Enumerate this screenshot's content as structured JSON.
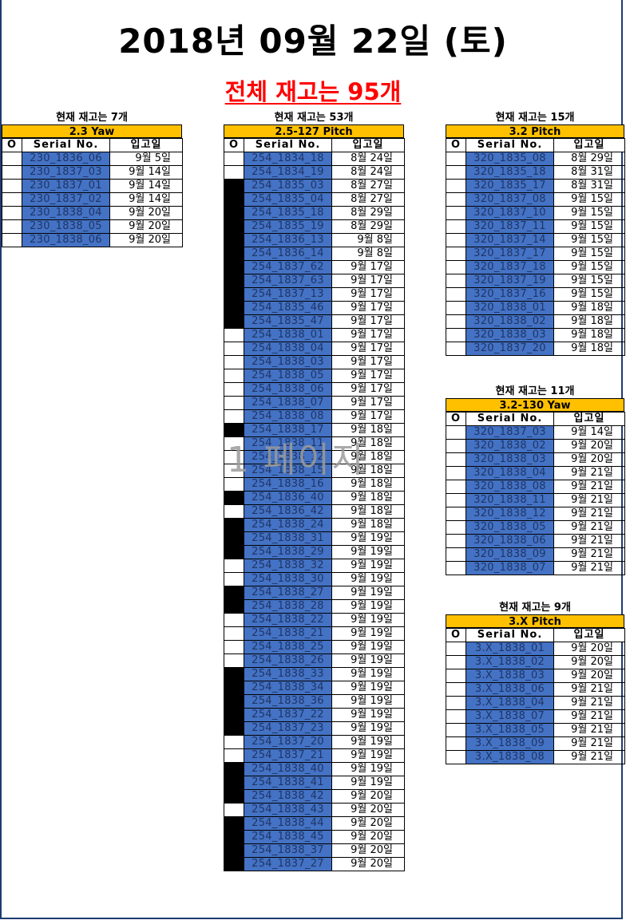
{
  "title": "2018년 09월 22일 (토)",
  "total": "전체 재고는 95개",
  "watermark": "1 페이지",
  "header": {
    "o": "O",
    "serial": "Serial No.",
    "date": "입고일"
  },
  "blocks": [
    {
      "stock": "현재 재고는 7개",
      "model": "2.3 Yaw",
      "rows": [
        {
          "o": false,
          "serial": "230_1836_06",
          "date": "9월 5일"
        },
        {
          "o": false,
          "serial": "230_1837_03",
          "date": "9월 14일"
        },
        {
          "o": false,
          "serial": "230_1837_01",
          "date": "9월 14일"
        },
        {
          "o": false,
          "serial": "230_1837_02",
          "date": "9월 14일"
        },
        {
          "o": false,
          "serial": "230_1838_04",
          "date": "9월 20일"
        },
        {
          "o": false,
          "serial": "230_1838_05",
          "date": "9월 20일"
        },
        {
          "o": false,
          "serial": "230_1838_06",
          "date": "9월 20일"
        }
      ]
    },
    {
      "stock": "현재 재고는 53개",
      "model": "2.5-127 Pitch",
      "rows": [
        {
          "o": false,
          "serial": "254_1834_18",
          "date": "8월 24일"
        },
        {
          "o": false,
          "serial": "254_1834_19",
          "date": "8월 24일"
        },
        {
          "o": true,
          "serial": "254_1835_03",
          "date": "8월 27일"
        },
        {
          "o": true,
          "serial": "254_1835_04",
          "date": "8월 27일"
        },
        {
          "o": true,
          "serial": "254_1835_18",
          "date": "8월 29일"
        },
        {
          "o": true,
          "serial": "254_1835_19",
          "date": "8월 29일"
        },
        {
          "o": true,
          "serial": "254_1836_13",
          "date": "9월 8일"
        },
        {
          "o": true,
          "serial": "254_1836_14",
          "date": "9월 8일"
        },
        {
          "o": true,
          "serial": "254_1837_62",
          "date": "9월 17일"
        },
        {
          "o": true,
          "serial": "254_1837_63",
          "date": "9월 17일"
        },
        {
          "o": true,
          "serial": "254_1837_13",
          "date": "9월 17일"
        },
        {
          "o": true,
          "serial": "254_1835_46",
          "date": "9월 17일"
        },
        {
          "o": true,
          "serial": "254_1835_47",
          "date": "9월 17일"
        },
        {
          "o": false,
          "serial": "254_1838_01",
          "date": "9월 17일"
        },
        {
          "o": false,
          "serial": "254_1838_04",
          "date": "9월 17일"
        },
        {
          "o": false,
          "serial": "254_1838_03",
          "date": "9월 17일"
        },
        {
          "o": false,
          "serial": "254_1838_05",
          "date": "9월 17일"
        },
        {
          "o": false,
          "serial": "254_1838_06",
          "date": "9월 17일"
        },
        {
          "o": false,
          "serial": "254_1838_07",
          "date": "9월 17일"
        },
        {
          "o": false,
          "serial": "254_1838_08",
          "date": "9월 17일"
        },
        {
          "o": true,
          "serial": "254_1838_17",
          "date": "9월 18일"
        },
        {
          "o": false,
          "serial": "254_1838_11",
          "date": "9월 18일"
        },
        {
          "o": false,
          "serial": "254_1838_12",
          "date": "9월 18일"
        },
        {
          "o": false,
          "serial": "254_1838_15",
          "date": "9월 18일"
        },
        {
          "o": false,
          "serial": "254_1838_16",
          "date": "9월 18일"
        },
        {
          "o": true,
          "serial": "254_1836_40",
          "date": "9월 18일"
        },
        {
          "o": false,
          "serial": "254_1836_42",
          "date": "9월 18일"
        },
        {
          "o": true,
          "serial": "254_1838_24",
          "date": "9월 18일"
        },
        {
          "o": true,
          "serial": "254_1838_31",
          "date": "9월 19일"
        },
        {
          "o": true,
          "serial": "254_1838_29",
          "date": "9월 19일"
        },
        {
          "o": false,
          "serial": "254_1838_32",
          "date": "9월 19일"
        },
        {
          "o": false,
          "serial": "254_1838_30",
          "date": "9월 19일"
        },
        {
          "o": true,
          "serial": "254_1838_27",
          "date": "9월 19일"
        },
        {
          "o": true,
          "serial": "254_1838_28",
          "date": "9월 19일"
        },
        {
          "o": false,
          "serial": "254_1838_22",
          "date": "9월 19일"
        },
        {
          "o": false,
          "serial": "254_1838_21",
          "date": "9월 19일"
        },
        {
          "o": false,
          "serial": "254_1838_25",
          "date": "9월 19일"
        },
        {
          "o": false,
          "serial": "254_1838_26",
          "date": "9월 19일"
        },
        {
          "o": true,
          "serial": "254_1838_33",
          "date": "9월 19일"
        },
        {
          "o": true,
          "serial": "254_1838_34",
          "date": "9월 19일"
        },
        {
          "o": true,
          "serial": "254_1838_36",
          "date": "9월 19일"
        },
        {
          "o": true,
          "serial": "254_1837_22",
          "date": "9월 19일"
        },
        {
          "o": true,
          "serial": "254_1837_23",
          "date": "9월 19일"
        },
        {
          "o": false,
          "serial": "254_1837_20",
          "date": "9월 19일"
        },
        {
          "o": false,
          "serial": "254_1837_21",
          "date": "9월 19일"
        },
        {
          "o": true,
          "serial": "254_1838_40",
          "date": "9월 19일"
        },
        {
          "o": true,
          "serial": "254_1838_41",
          "date": "9월 19일"
        },
        {
          "o": true,
          "serial": "254_1838_42",
          "date": "9월 20일"
        },
        {
          "o": false,
          "serial": "254_1838_43",
          "date": "9월 20일"
        },
        {
          "o": true,
          "serial": "254_1838_44",
          "date": "9월 20일"
        },
        {
          "o": true,
          "serial": "254_1838_45",
          "date": "9월 20일"
        },
        {
          "o": true,
          "serial": "254_1838_37",
          "date": "9월 20일"
        },
        {
          "o": true,
          "serial": "254_1837_27",
          "date": "9월 20일"
        }
      ]
    },
    {
      "stock": "현재 재고는 15개",
      "model": "3.2 Pitch",
      "rows": [
        {
          "o": false,
          "serial": "320_1835_08",
          "date": "8월 29일"
        },
        {
          "o": false,
          "serial": "320_1835_18",
          "date": "8월 31일"
        },
        {
          "o": false,
          "serial": "320_1835_17",
          "date": "8월 31일"
        },
        {
          "o": false,
          "serial": "320_1837_08",
          "date": "9월 15일"
        },
        {
          "o": false,
          "serial": "320_1837_10",
          "date": "9월 15일"
        },
        {
          "o": false,
          "serial": "320_1837_11",
          "date": "9월 15일"
        },
        {
          "o": false,
          "serial": "320_1837_14",
          "date": "9월 15일"
        },
        {
          "o": false,
          "serial": "320_1837_17",
          "date": "9월 15일"
        },
        {
          "o": false,
          "serial": "320_1837_18",
          "date": "9월 15일"
        },
        {
          "o": false,
          "serial": "320_1837_19",
          "date": "9월 15일"
        },
        {
          "o": false,
          "serial": "320_1837_16",
          "date": "9월 15일"
        },
        {
          "o": false,
          "serial": "320_1838_01",
          "date": "9월 18일"
        },
        {
          "o": false,
          "serial": "320_1838_02",
          "date": "9월 18일"
        },
        {
          "o": false,
          "serial": "320_1838_03",
          "date": "9월 18일"
        },
        {
          "o": false,
          "serial": "320_1837_20",
          "date": "9월 18일"
        }
      ]
    },
    {
      "stock": "현재 재고는 11개",
      "model": "3.2-130 Yaw",
      "rows": [
        {
          "o": false,
          "serial": "320_1837_03",
          "date": "9월 14일"
        },
        {
          "o": false,
          "serial": "320_1838_02",
          "date": "9월 20일"
        },
        {
          "o": false,
          "serial": "320_1838_03",
          "date": "9월 20일"
        },
        {
          "o": false,
          "serial": "320_1838_04",
          "date": "9월 21일"
        },
        {
          "o": false,
          "serial": "320_1838_08",
          "date": "9월 21일"
        },
        {
          "o": false,
          "serial": "320_1838_11",
          "date": "9월 21일"
        },
        {
          "o": false,
          "serial": "320_1838_12",
          "date": "9월 21일"
        },
        {
          "o": false,
          "serial": "320_1838_05",
          "date": "9월 21일"
        },
        {
          "o": false,
          "serial": "320_1838_06",
          "date": "9월 21일"
        },
        {
          "o": false,
          "serial": "320_1838_09",
          "date": "9월 21일"
        },
        {
          "o": false,
          "serial": "320_1838_07",
          "date": "9월 21일"
        }
      ]
    },
    {
      "stock": "현재 재고는 9개",
      "model": "3.X Pitch",
      "rows": [
        {
          "o": false,
          "serial": "3.X_1838_01",
          "date": "9월 20일"
        },
        {
          "o": false,
          "serial": "3.X_1838_02",
          "date": "9월 20일"
        },
        {
          "o": false,
          "serial": "3.X_1838_03",
          "date": "9월 20일"
        },
        {
          "o": false,
          "serial": "3.X_1838_06",
          "date": "9월 21일"
        },
        {
          "o": false,
          "serial": "3.X_1838_04",
          "date": "9월 21일"
        },
        {
          "o": false,
          "serial": "3.X_1838_07",
          "date": "9월 21일"
        },
        {
          "o": false,
          "serial": "3.X_1838_05",
          "date": "9월 21일"
        },
        {
          "o": false,
          "serial": "3.X_1838_09",
          "date": "9월 21일"
        },
        {
          "o": false,
          "serial": "3.X_1838_08",
          "date": "9월 21일"
        }
      ]
    }
  ],
  "colors": {
    "model_bg": "#ffc000",
    "serial_bg": "#4472c4",
    "total_text": "#ff0000",
    "o_marked": "#000000"
  }
}
